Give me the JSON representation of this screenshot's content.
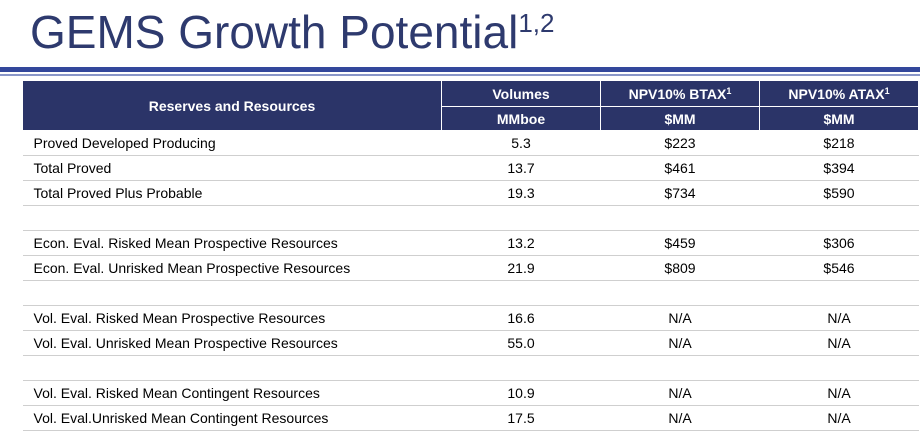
{
  "title": {
    "text": "GEMS Growth Potential",
    "superscript": "1,2"
  },
  "table": {
    "headers": {
      "category": "Reserves and Resources",
      "volumes": "Volumes",
      "volumes_unit": "MMboe",
      "btax": "NPV10% BTAX",
      "btax_sup": "1",
      "btax_unit": "$MM",
      "atax": "NPV10% ATAX",
      "atax_sup": "1",
      "atax_unit": "$MM"
    },
    "rows": [
      {
        "label": "Proved Developed Producing",
        "volume": "5.3",
        "btax": "$223",
        "atax": "$218"
      },
      {
        "label": "Total Proved",
        "volume": "13.7",
        "btax": "$461",
        "atax": "$394"
      },
      {
        "label": "Total Proved Plus Probable",
        "volume": "19.3",
        "btax": "$734",
        "atax": "$590"
      },
      {
        "label": "Econ. Eval. Risked Mean Prospective Resources",
        "volume": "13.2",
        "btax": "$459",
        "atax": "$306"
      },
      {
        "label": "Econ. Eval. Unrisked Mean Prospective Resources",
        "volume": "21.9",
        "btax": "$809",
        "atax": "$546"
      },
      {
        "label": "Vol. Eval. Risked Mean Prospective Resources",
        "volume": "16.6",
        "btax": "N/A",
        "atax": "N/A"
      },
      {
        "label": "Vol. Eval. Unrisked Mean Prospective Resources",
        "volume": "55.0",
        "btax": "N/A",
        "atax": "N/A"
      },
      {
        "label": "Vol. Eval. Risked Mean Contingent Resources",
        "volume": "10.9",
        "btax": "N/A",
        "atax": "N/A"
      },
      {
        "label": "Vol. Eval.Unrisked Mean Contingent Resources",
        "volume": "17.5",
        "btax": "N/A",
        "atax": "N/A"
      }
    ]
  }
}
